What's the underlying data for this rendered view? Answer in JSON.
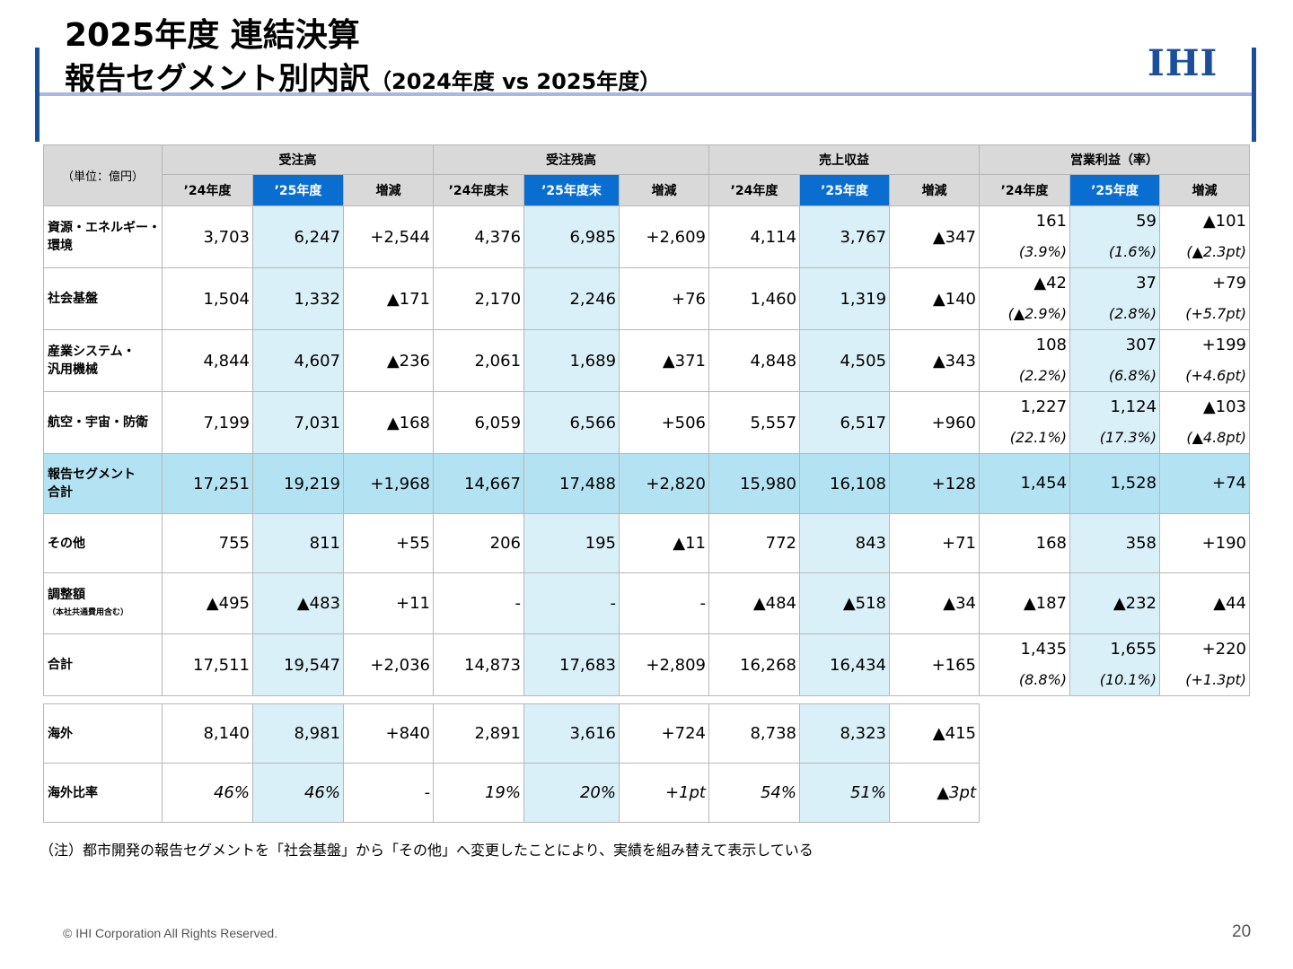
{
  "title_line1": "2025年度 連結決算",
  "title_line2": "報告セグメント別内訳",
  "title_line2_sub": "（2024年度 vs 2025年度）",
  "logo": "IHI",
  "unit": "（単位：億円）",
  "groups": [
    "受注高",
    "受注残高",
    "売上収益",
    "営業利益（率）"
  ],
  "subheaders": [
    "’24年度",
    "’25年度",
    "増減",
    "’24年度末",
    "’25年度末",
    "増減",
    "’24年度",
    "’25年度",
    "増減",
    "’24年度",
    "’25年度",
    "増減"
  ],
  "rows": [
    {
      "label": [
        "資源・エネルギー・",
        "環境"
      ],
      "v": [
        "3,703",
        "6,247",
        "+2,544",
        "4,376",
        "6,985",
        "+2,609",
        "4,114",
        "3,767",
        "▲347"
      ],
      "op": [
        "161",
        "59",
        "▲101"
      ],
      "pct": [
        "(3.9%)",
        "(1.6%)",
        "(▲2.3pt)"
      ]
    },
    {
      "label": [
        "社会基盤",
        ""
      ],
      "v": [
        "1,504",
        "1,332",
        "▲171",
        "2,170",
        "2,246",
        "+76",
        "1,460",
        "1,319",
        "▲140"
      ],
      "op": [
        "▲42",
        "37",
        "+79"
      ],
      "pct": [
        "(▲2.9%)",
        "(2.8%)",
        "(+5.7pt)"
      ]
    },
    {
      "label": [
        "産業システム・",
        "汎用機械"
      ],
      "v": [
        "4,844",
        "4,607",
        "▲236",
        "2,061",
        "1,689",
        "▲371",
        "4,848",
        "4,505",
        "▲343"
      ],
      "op": [
        "108",
        "307",
        "+199"
      ],
      "pct": [
        "(2.2%)",
        "(6.8%)",
        "(+4.6pt)"
      ]
    },
    {
      "label": [
        "航空・宇宙・防衛",
        ""
      ],
      "v": [
        "7,199",
        "7,031",
        "▲168",
        "6,059",
        "6,566",
        "+506",
        "5,557",
        "6,517",
        "+960"
      ],
      "op": [
        "1,227",
        "1,124",
        "▲103"
      ],
      "pct": [
        "(22.1%)",
        "(17.3%)",
        "(▲4.8pt)"
      ]
    },
    {
      "label": [
        "報告セグメント",
        "合計"
      ],
      "v": [
        "17,251",
        "19,219",
        "+1,968",
        "14,667",
        "17,488",
        "+2,820",
        "15,980",
        "16,108",
        "+128"
      ],
      "op": [
        "1,454",
        "1,528",
        "+74"
      ],
      "pct": [
        "",
        "",
        ""
      ]
    },
    {
      "label": [
        "その他",
        ""
      ],
      "v": [
        "755",
        "811",
        "+55",
        "206",
        "195",
        "▲11",
        "772",
        "843",
        "+71"
      ],
      "op": [
        "168",
        "358",
        "+190"
      ],
      "pct": [
        "",
        "",
        ""
      ]
    },
    {
      "label": [
        "調整額",
        "（本社共通費用含む）"
      ],
      "v": [
        "▲495",
        "▲483",
        "+11",
        "-",
        "-",
        "-",
        "▲484",
        "▲518",
        "▲34"
      ],
      "op": [
        "▲187",
        "▲232",
        "▲44"
      ],
      "pct": [
        "",
        "",
        ""
      ]
    },
    {
      "label": [
        "合計",
        ""
      ],
      "v": [
        "17,511",
        "19,547",
        "+2,036",
        "14,873",
        "17,683",
        "+2,809",
        "16,268",
        "16,434",
        "+165"
      ],
      "op": [
        "1,435",
        "1,655",
        "+220"
      ],
      "pct": [
        "(8.8%)",
        "(10.1%)",
        "(+1.3pt)"
      ]
    }
  ],
  "overseas": [
    {
      "label": "海外",
      "v": [
        "8,140",
        "8,981",
        "+840",
        "2,891",
        "3,616",
        "+724",
        "8,738",
        "8,323",
        "▲415"
      ]
    },
    {
      "label": "海外比率",
      "v": [
        "46%",
        "46%",
        "-",
        "19%",
        "20%",
        "+1pt",
        "54%",
        "51%",
        "▲3pt"
      ]
    }
  ],
  "note": "（注）都市開発の報告セグメントを「社会基盤」から「その他」へ変更したことにより、実績を組み替えて表示している",
  "copyright": "© IHI Corporation All Rights Reserved.",
  "page_number": "20"
}
